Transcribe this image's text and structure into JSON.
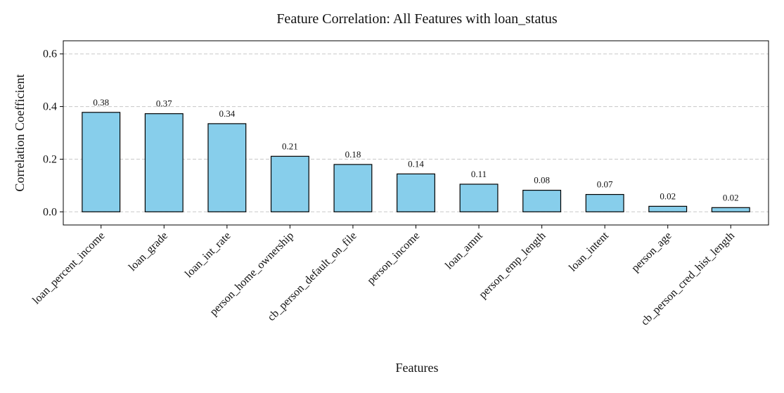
{
  "chart_data": {
    "type": "bar",
    "title": "Feature Correlation: All Features with loan_status",
    "xlabel": "Features",
    "ylabel": "Correlation Coefficient",
    "categories": [
      "loan_percent_income",
      "loan_grade",
      "loan_int_rate",
      "person_home_ownership",
      "cb_person_default_on_file",
      "person_income",
      "loan_amnt",
      "person_emp_length",
      "loan_intent",
      "person_age",
      "cb_person_cred_hist_length"
    ],
    "values": [
      0.378,
      0.373,
      0.335,
      0.211,
      0.18,
      0.144,
      0.105,
      0.082,
      0.066,
      0.021,
      0.016
    ],
    "value_labels": [
      "0.38",
      "0.37",
      "0.34",
      "0.21",
      "0.18",
      "0.14",
      "0.11",
      "0.08",
      "0.07",
      "0.02",
      "0.02"
    ],
    "ylim": [
      -0.05,
      0.65
    ],
    "yticks": [
      0.0,
      0.2,
      0.4,
      0.6
    ],
    "ytick_labels": [
      "0.0",
      "0.2",
      "0.4",
      "0.6"
    ],
    "grid": "y-dashed",
    "bar_color": "#87CEEB",
    "bar_edge_color": "#000000"
  }
}
